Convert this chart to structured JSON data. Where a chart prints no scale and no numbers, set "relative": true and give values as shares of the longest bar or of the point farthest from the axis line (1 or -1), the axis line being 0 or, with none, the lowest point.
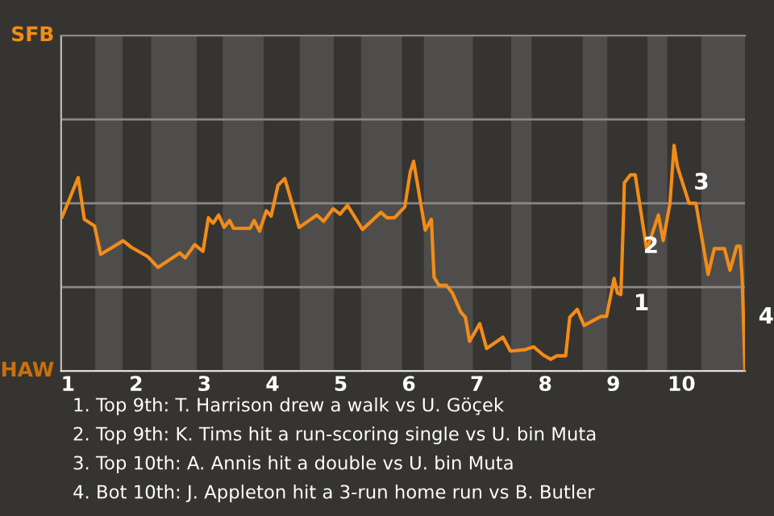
{
  "chart_data": {
    "type": "line",
    "relative": true,
    "x": [
      0.91,
      1.15,
      1.24,
      1.39,
      1.48,
      1.81,
      1.93,
      2.17,
      2.32,
      2.64,
      2.72,
      2.86,
      2.98,
      3.06,
      3.13,
      3.21,
      3.29,
      3.37,
      3.43,
      3.67,
      3.73,
      3.81,
      3.91,
      3.98,
      4.08,
      4.18,
      4.39,
      4.65,
      4.75,
      4.89,
      4.99,
      5.1,
      5.32,
      5.59,
      5.68,
      5.79,
      5.94,
      6.02,
      6.07,
      6.15,
      6.24,
      6.33,
      6.37,
      6.44,
      6.55,
      6.64,
      6.76,
      6.83,
      6.89,
      7.04,
      7.14,
      7.38,
      7.49,
      7.71,
      7.83,
      7.97,
      8.08,
      8.17,
      8.3,
      8.36,
      8.47,
      8.57,
      8.82,
      8.9,
      9.01,
      9.06,
      9.11,
      9.15,
      9.16,
      9.25,
      9.32,
      9.49,
      9.66,
      9.73,
      9.83,
      9.89,
      9.94,
      10.11,
      10.21,
      10.39,
      10.48,
      10.63,
      10.71,
      10.81,
      10.86,
      10.89,
      10.93
    ],
    "series": [
      {
        "color": "#f28c18",
        "values": [
          0.679,
          0.857,
          0.672,
          0.643,
          0.517,
          0.577,
          0.548,
          0.507,
          0.459,
          0.523,
          0.501,
          0.56,
          0.53,
          0.679,
          0.655,
          0.691,
          0.637,
          0.667,
          0.632,
          0.632,
          0.667,
          0.62,
          0.71,
          0.686,
          0.822,
          0.853,
          0.636,
          0.691,
          0.663,
          0.719,
          0.695,
          0.734,
          0.627,
          0.703,
          0.679,
          0.679,
          0.727,
          0.881,
          0.929,
          0.786,
          0.624,
          0.672,
          0.416,
          0.38,
          0.38,
          0.345,
          0.262,
          0.238,
          0.131,
          0.21,
          0.1,
          0.15,
          0.088,
          0.095,
          0.107,
          0.071,
          0.052,
          0.067,
          0.067,
          0.238,
          0.273,
          0.202,
          0.242,
          0.242,
          0.41,
          0.345,
          0.339,
          0.703,
          0.834,
          0.869,
          0.869,
          0.536,
          0.691,
          0.578,
          0.743,
          1,
          0.905,
          0.743,
          0.743,
          0.428,
          0.542,
          0.542,
          0.446,
          0.553,
          0.553,
          0.404,
          0
        ]
      }
    ],
    "xlim": [
      0.9,
      10.93
    ],
    "xticks": [
      1,
      2,
      3,
      4,
      5,
      6,
      7,
      8,
      9,
      10
    ],
    "ref_lines": [
      {
        "axis": "y",
        "value": 0.372,
        "color": "#8a8886"
      },
      {
        "axis": "y",
        "value": 0.743,
        "color": "#8a8886"
      },
      {
        "axis": "y",
        "value": 1.115,
        "color": "#8a8886"
      }
    ],
    "bands": [
      {
        "axis": "x",
        "from": 1.4,
        "to": 1.8,
        "color": "#4f4d4b"
      },
      {
        "axis": "x",
        "from": 2.22,
        "to": 2.89,
        "color": "#4f4d4b"
      },
      {
        "axis": "x",
        "from": 3.27,
        "to": 3.87,
        "color": "#4f4d4b"
      },
      {
        "axis": "x",
        "from": 4.4,
        "to": 4.9,
        "color": "#4f4d4b"
      },
      {
        "axis": "x",
        "from": 5.3,
        "to": 5.9,
        "color": "#4f4d4b"
      },
      {
        "axis": "x",
        "from": 6.22,
        "to": 6.94,
        "color": "#4f4d4b"
      },
      {
        "axis": "x",
        "from": 7.5,
        "to": 7.8,
        "color": "#4f4d4b"
      },
      {
        "axis": "x",
        "from": 8.55,
        "to": 8.91,
        "color": "#4f4d4b"
      },
      {
        "axis": "x",
        "from": 9.5,
        "to": 9.79,
        "color": "#4f4d4b"
      },
      {
        "axis": "x",
        "from": 10.29,
        "to": 10.93,
        "color": "#4f4d4b"
      }
    ],
    "annotations": [
      "SFB",
      "HAW",
      {
        "text": "1",
        "x": 9.1,
        "y": 0.297
      },
      {
        "text": "2",
        "x": 9.24,
        "y": 0.55
      },
      {
        "text": "3",
        "x": 9.98,
        "y": 0.832
      },
      {
        "text": "4",
        "x": 10.93,
        "y": 0.238
      },
      "1. Top 9th: T. Harrison drew a walk vs U. Göçek",
      "2. Top 9th: K. Tims hit a run-scoring single vs U. bin Muta",
      "3. Top 10th: A. Annis hit a double vs U. bin Muta",
      "4. Bot 10th: J. Appleton hit a 3-run home run vs B. Butler"
    ]
  }
}
